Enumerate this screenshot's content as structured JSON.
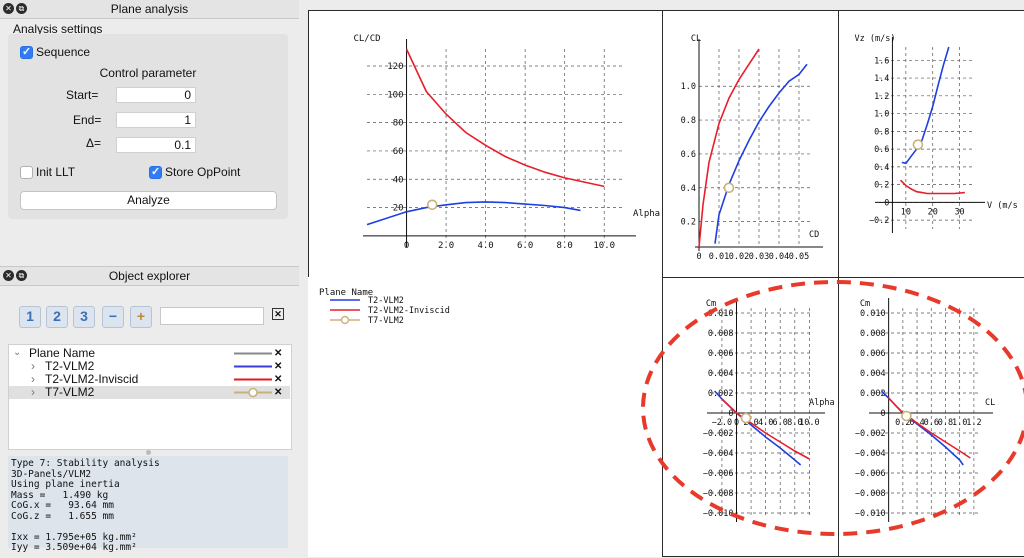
{
  "plane_analysis": {
    "title": "Plane analysis",
    "section_title": "Analysis settings",
    "sequence_label": "Sequence",
    "control_parameter_label": "Control parameter",
    "start_label": "Start=",
    "start_value": "0",
    "end_label": "End=",
    "end_value": "1",
    "delta_label": "Δ=",
    "delta_value": "0.1",
    "init_llt_label": "Init LLT",
    "store_oppoint_label": "Store OpPoint",
    "analyze_label": "Analyze"
  },
  "object_explorer": {
    "title": "Object explorer",
    "buttons": [
      "1",
      "2",
      "3",
      "−",
      "+"
    ],
    "filter_clear_icon": "clear-filter-icon",
    "tree": {
      "header": "Plane Name",
      "items": [
        {
          "label": "T2-VLM2",
          "color": "#3a3ae0",
          "symbol": false
        },
        {
          "label": "T2-VLM2-Inviscid",
          "color": "#e01a1a",
          "symbol": false
        },
        {
          "label": "T7-VLM2",
          "color": "#c8b27a",
          "symbol": true
        }
      ]
    },
    "info_lines": [
      "Type 7: Stability analysis",
      "3D-Panels/VLM2",
      "Using plane inertia",
      "Mass =   1.490 kg",
      "CoG.x =   93.64 mm",
      "CoG.z =   1.655 mm",
      "",
      "Ixx = 1.795e+05 kg.mm²",
      "Iyy = 3.509e+04 kg.mm²"
    ]
  },
  "legend": {
    "title": "Plane Name",
    "entries": [
      "T2-VLM2",
      "T2-VLM2-Inviscid",
      "T7-VLM2"
    ]
  },
  "colors": {
    "blue": "#1f3fe0",
    "red": "#e81e2a",
    "marker": "#c8b27a",
    "highlight": "#e83a2a"
  },
  "chart_data": [
    {
      "type": "line",
      "ylabel": "CL/CD",
      "xlabel": "Alpha",
      "x_ticks": [
        "0",
        "2.0",
        "4.0",
        "6.0",
        "8.0",
        "10.0"
      ],
      "y_ticks": [
        "20",
        "40",
        "60",
        "80",
        "100",
        "120"
      ],
      "xlim": [
        -2,
        11
      ],
      "ylim": [
        -5,
        132
      ],
      "series": [
        {
          "name": "T2-VLM2",
          "x": [
            -2,
            0,
            1,
            2,
            3,
            4,
            5,
            6,
            7,
            8,
            8.8
          ],
          "y": [
            8,
            17,
            20,
            22,
            23.5,
            24,
            23.5,
            22.5,
            21.5,
            20,
            18
          ]
        },
        {
          "name": "T2-VLM2-Inviscid",
          "x": [
            0,
            1,
            2,
            3,
            4,
            5,
            6,
            7,
            8,
            9,
            10
          ],
          "y": [
            132,
            102,
            86,
            73,
            64,
            56,
            50,
            45,
            41,
            38,
            35
          ]
        }
      ],
      "marker": {
        "x": 1.3,
        "y": 22
      }
    },
    {
      "type": "line",
      "ylabel": "CL",
      "xlabel": "CD",
      "x_ticks": [
        "0",
        "0.01",
        "0.02",
        "0.03",
        "0.04",
        "0.05"
      ],
      "y_ticks": [
        "0.2",
        "0.4",
        "0.6",
        "0.8",
        "1.0"
      ],
      "xlim": [
        0,
        0.056
      ],
      "ylim": [
        0.05,
        1.22
      ],
      "series": [
        {
          "name": "T2-VLM2",
          "x": [
            0.008,
            0.01,
            0.015,
            0.02,
            0.025,
            0.03,
            0.035,
            0.04,
            0.045,
            0.05,
            0.054
          ],
          "y": [
            0.07,
            0.24,
            0.42,
            0.56,
            0.68,
            0.79,
            0.88,
            0.96,
            1.03,
            1.07,
            1.13
          ]
        },
        {
          "name": "T2-VLM2-Inviscid",
          "x": [
            0,
            0.002,
            0.005,
            0.01,
            0.015,
            0.02,
            0.025,
            0.03
          ],
          "y": [
            0.05,
            0.3,
            0.55,
            0.78,
            0.93,
            1.04,
            1.13,
            1.22
          ]
        }
      ],
      "marker": {
        "x": 0.015,
        "y": 0.4
      }
    },
    {
      "type": "line",
      "ylabel": "Vz (m/s)",
      "xlabel": "V (m/s",
      "x_ticks": [
        "10",
        "20",
        "30"
      ],
      "y_ticks": [
        "−0.2",
        "0",
        "0.2",
        "0.4",
        "0.6",
        "0.8",
        "1.0",
        "1.2",
        "1.4",
        "1.6"
      ],
      "xlim": [
        0,
        35
      ],
      "ylim": [
        -0.3,
        1.75
      ],
      "series": [
        {
          "name": "T2-VLM2",
          "x": [
            8.5,
            10,
            12,
            14,
            16,
            18,
            20,
            22,
            24,
            26
          ],
          "y": [
            0.45,
            0.44,
            0.52,
            0.6,
            0.7,
            0.88,
            1.08,
            1.32,
            1.55,
            1.75
          ]
        },
        {
          "name": "T2-VLM2-Inviscid",
          "x": [
            8,
            10,
            12,
            14,
            16,
            18,
            20,
            24,
            28,
            32
          ],
          "y": [
            0.25,
            0.19,
            0.15,
            0.12,
            0.11,
            0.1,
            0.1,
            0.1,
            0.1,
            0.11
          ]
        }
      ],
      "marker": {
        "x": 14.5,
        "y": 0.65
      }
    },
    {
      "type": "line",
      "ylabel": "Cm",
      "xlabel": "Alpha",
      "x_ticks": [
        "−2.0",
        "0",
        "2.0",
        "4.0",
        "6.0",
        "8.0",
        "10.0"
      ],
      "y_ticks": [
        "−0.010",
        "−0.008",
        "−0.006",
        "−0.004",
        "−0.002",
        "0",
        "0.002",
        "0.004",
        "0.006",
        "0.008",
        "0.010"
      ],
      "xlim": [
        -3.5,
        10.5
      ],
      "ylim": [
        -0.0105,
        0.0105
      ],
      "series": [
        {
          "name": "T2-VLM2",
          "x": [
            -3,
            -2,
            0,
            2,
            4,
            6,
            8,
            8.8
          ],
          "y": [
            0.0022,
            0.0014,
            0.0,
            -0.0012,
            -0.0024,
            -0.0035,
            -0.0047,
            -0.0052
          ]
        },
        {
          "name": "T2-VLM2-Inviscid",
          "x": [
            -2,
            0,
            2,
            4,
            6,
            8,
            10
          ],
          "y": [
            0.0014,
            0.0,
            -0.001,
            -0.002,
            -0.0029,
            -0.0038,
            -0.0046
          ]
        }
      ],
      "marker": {
        "x": 1.3,
        "y": -0.0005
      }
    },
    {
      "type": "line",
      "ylabel": "Cm",
      "xlabel": "CL",
      "x_ticks": [
        "0.2",
        "0.4",
        "0.6",
        "0.8",
        "1.0",
        "1.2"
      ],
      "y_ticks": [
        "−0.010",
        "−0.008",
        "−0.006",
        "−0.004",
        "−0.002",
        "0",
        "0.002",
        "0.004",
        "0.006",
        "0.008",
        "0.010"
      ],
      "xlim": [
        -0.22,
        1.3
      ],
      "ylim": [
        -0.0105,
        0.0105
      ],
      "series": [
        {
          "name": "T2-VLM2",
          "x": [
            -0.1,
            0,
            0.2,
            0.4,
            0.6,
            0.8,
            1.0,
            1.05
          ],
          "y": [
            0.0022,
            0.0015,
            0.0,
            -0.0011,
            -0.0022,
            -0.0034,
            -0.0047,
            -0.0052
          ]
        },
        {
          "name": "T2-VLM2-Inviscid",
          "x": [
            0,
            0.2,
            0.4,
            0.6,
            0.8,
            1.0,
            1.15
          ],
          "y": [
            0.0015,
            0.0,
            -0.001,
            -0.002,
            -0.0029,
            -0.0038,
            -0.0045
          ]
        }
      ],
      "marker": {
        "x": 0.25,
        "y": -0.0003
      }
    }
  ]
}
